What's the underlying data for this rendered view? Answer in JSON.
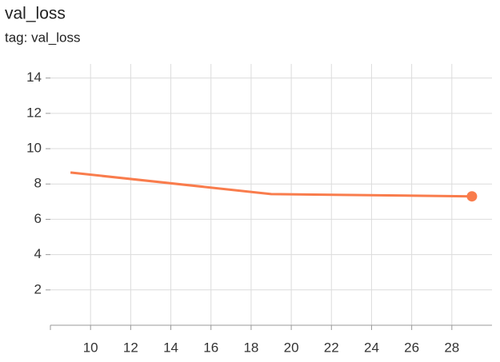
{
  "chart_data": {
    "type": "line",
    "title": "val_loss",
    "subtitle": "tag: val_loss",
    "x": [
      9,
      19,
      29
    ],
    "series": [
      {
        "name": "val_loss",
        "color": "#f97c4c",
        "values": [
          8.65,
          7.43,
          7.3
        ]
      }
    ],
    "xlim": [
      8,
      30
    ],
    "xticks": [
      10,
      12,
      14,
      16,
      18,
      20,
      22,
      24,
      26,
      28
    ],
    "ylim": [
      0,
      14.8
    ],
    "yticks": [
      2,
      4,
      6,
      8,
      10,
      12,
      14
    ],
    "grid": true
  }
}
